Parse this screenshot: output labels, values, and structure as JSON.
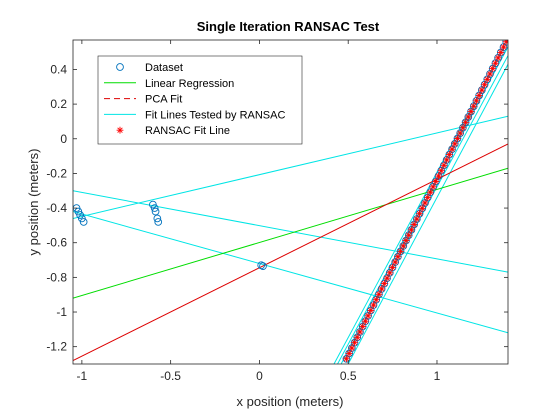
{
  "chart_data": {
    "type": "scatter",
    "title": "Single Iteration RANSAC Test",
    "xlabel": "x position (meters)",
    "ylabel": "y position (meters)",
    "xlim": [
      -1.05,
      1.4
    ],
    "ylim": [
      -1.3,
      0.57
    ],
    "xticks": [
      -1,
      -0.5,
      0,
      0.5,
      1
    ],
    "xtick_labels": [
      "-1",
      "-0.5",
      "0",
      "0.5",
      "1"
    ],
    "yticks": [
      -1.2,
      -1,
      -0.8,
      -0.6,
      -0.4,
      -0.2,
      0,
      0.2,
      0.4
    ],
    "ytick_labels": [
      "-1.2",
      "-1",
      "-0.8",
      "-0.6",
      "-0.4",
      "-0.2",
      "0",
      "0.2",
      "0.4"
    ],
    "grid": false,
    "legend_position": "top-left",
    "legend": [
      {
        "label": "Dataset",
        "marker": "circle",
        "color": "#0072bd"
      },
      {
        "label": "Linear Regression",
        "marker": "line",
        "color": "#00dd00"
      },
      {
        "label": "PCA Fit",
        "marker": "dashed-line",
        "color": "#dd0000"
      },
      {
        "label": "Fit Lines Tested by RANSAC",
        "marker": "line",
        "color": "#00e5e5"
      },
      {
        "label": "RANSAC Fit Line",
        "marker": "asterisk",
        "color": "#ff0000"
      }
    ],
    "dataset_clusters": [
      {
        "x": [
          -1.03,
          -1.02,
          -1.01,
          -1.0,
          -0.99
        ],
        "y": [
          -0.4,
          -0.42,
          -0.44,
          -0.46,
          -0.48
        ]
      },
      {
        "x": [
          -0.6,
          -0.59,
          -0.585,
          -0.575,
          -0.57
        ],
        "y": [
          -0.38,
          -0.4,
          -0.42,
          -0.46,
          -0.48
        ]
      },
      {
        "x": [
          0.01,
          0.02
        ],
        "y": [
          -0.73,
          -0.735
        ]
      }
    ],
    "inlier_line": {
      "x_start": 0.49,
      "x_end": 1.39,
      "y_start": -1.27,
      "y_end": 0.56,
      "n_points": 60
    },
    "linear_regression": {
      "x": [
        -1.05,
        1.4
      ],
      "y": [
        -0.92,
        -0.17
      ]
    },
    "pca_fit": {
      "x": [
        -1.05,
        1.4
      ],
      "y": [
        -1.28,
        -0.03
      ]
    },
    "ransac_tested_lines": [
      {
        "x": [
          -1.05,
          1.4
        ],
        "y": [
          -0.46,
          0.13
        ]
      },
      {
        "x": [
          -1.05,
          1.4
        ],
        "y": [
          -0.3,
          -0.77
        ]
      },
      {
        "x": [
          -1.05,
          1.4
        ],
        "y": [
          -0.42,
          -1.12
        ]
      },
      {
        "x": [
          0.42,
          1.4
        ],
        "y": [
          -1.3,
          0.57
        ]
      },
      {
        "x": [
          0.44,
          1.4
        ],
        "y": [
          -1.3,
          0.53
        ]
      },
      {
        "x": [
          0.46,
          1.4
        ],
        "y": [
          -1.3,
          0.48
        ]
      },
      {
        "x": [
          0.5,
          1.4
        ],
        "y": [
          -1.3,
          0.43
        ]
      }
    ],
    "colors": {
      "dataset": "#0072bd",
      "linear_regression": "#00dd00",
      "pca_fit": "#dd0000",
      "ransac_tested": "#00e5e5",
      "ransac_fit": "#ff0000",
      "axes": "#262626"
    }
  }
}
